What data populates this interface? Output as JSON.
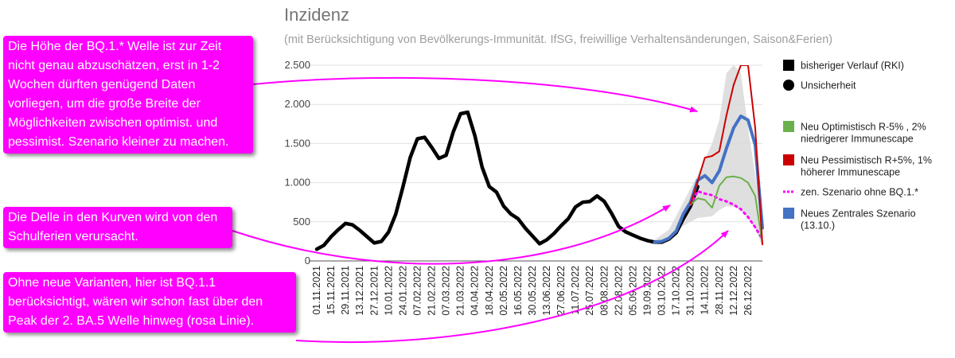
{
  "header": {
    "title": "Inzidenz",
    "subtitle": "(mit Berücksichtigung von Bevölkerungs-Immunität. IfSG, freiwillige Verhaltensänderungen, Saison&Ferien)"
  },
  "callouts": [
    {
      "text": "Die Höhe der BQ.1.* Welle ist zur Zeit nicht genau abzuschätzen, erst in 1-2 Wochen dürften genügend Daten vorliegen, um die große Breite der Möglichkeiten zwischen optimist. und pessimist. Szenario kleiner zu machen."
    },
    {
      "text": "Die Delle in den Kurven wird von den Schulferien verursacht."
    },
    {
      "text": "Ohne neue Varianten, hier ist BQ.1.1 berücksichtigt, wären wir schon fast über den Peak der 2. BA.5 Welle hinweg (rosa Linie)."
    }
  ],
  "colors": {
    "callout": "#ff00ff",
    "history": "#000000",
    "optimistic": "#6ab04c",
    "pessimistic": "#cc0000",
    "central": "#4472c4",
    "no_bq1": "#ff00ff",
    "band": "#d9d9d9"
  },
  "chart_data": {
    "type": "line",
    "ylim": [
      0,
      2500
    ],
    "y_ticks": [
      0,
      500,
      1000,
      1500,
      2000,
      2500
    ],
    "y_tick_labels": [
      "0",
      "500",
      "1.000",
      "1.500",
      "2.000",
      "2.500"
    ],
    "x_tick_labels": [
      "01.11.2021",
      "15.11.2021",
      "29.11.2021",
      "13.12.2021",
      "27.12.2021",
      "10.01.2022",
      "24.01.2022",
      "07.02.2022",
      "21.02.2022",
      "07.03.2022",
      "21.03.2022",
      "04.04.2022",
      "18.04.2022",
      "02.05.2022",
      "16.05.2022",
      "30.05.2022",
      "13.06.2022",
      "27.06.2022",
      "11.07.2022",
      "25.07.2022",
      "08.08.2022",
      "22.08.2022",
      "05.09.2022",
      "19.09.2022",
      "03.10.2022",
      "17.10.2022",
      "31.10.2022",
      "14.11.2022",
      "28.11.2022",
      "12.12.2022",
      "26.12.2022"
    ],
    "x_range": [
      0,
      62
    ],
    "legend": [
      {
        "label": "bisheriger Verlauf (RKI)",
        "marker": "square",
        "color": "#000000"
      },
      {
        "label": "Unsicherheit",
        "marker": "circle",
        "color": "#000000"
      },
      {
        "label": "Neu Optimistisch R-5% , 2% niedrigerer Immunescape",
        "marker": "square",
        "color": "#6ab04c"
      },
      {
        "label": "Neu Pessimistisch R+5%, 1% höherer Immunescape",
        "marker": "square",
        "color": "#cc0000"
      },
      {
        "label": "zen. Szenario ohne BQ.1.*",
        "marker": "dots",
        "color": "#ff00ff"
      },
      {
        "label": "Neues Zentrales Szenario (13.10.)",
        "marker": "square",
        "color": "#4472c4"
      }
    ],
    "uncertainty_band": {
      "x": [
        47,
        49,
        51,
        53,
        55,
        56,
        57,
        58,
        59,
        60,
        61,
        62
      ],
      "lower": [
        230,
        300,
        450,
        550,
        570,
        650,
        700,
        690,
        650,
        550,
        400,
        200
      ],
      "upper": [
        270,
        400,
        750,
        1100,
        1500,
        1800,
        2400,
        2500,
        2400,
        1700,
        1100,
        450
      ]
    },
    "series": [
      {
        "key": "history",
        "x": [
          0,
          1,
          2,
          3,
          4,
          5,
          6,
          7,
          8,
          9,
          10,
          11,
          12,
          13,
          14,
          15,
          16,
          17,
          18,
          19,
          20,
          21,
          22,
          23,
          24,
          25,
          26,
          27,
          28,
          29,
          30,
          31,
          32,
          33,
          34,
          35,
          36,
          37,
          38,
          39,
          40,
          41,
          42,
          43,
          44,
          45,
          46,
          47,
          48,
          49,
          50,
          51,
          52,
          53
        ],
        "values": [
          150,
          200,
          310,
          400,
          480,
          460,
          390,
          310,
          230,
          250,
          370,
          600,
          950,
          1320,
          1560,
          1580,
          1450,
          1310,
          1350,
          1650,
          1880,
          1900,
          1600,
          1200,
          950,
          880,
          700,
          600,
          540,
          420,
          320,
          220,
          270,
          350,
          450,
          540,
          690,
          750,
          760,
          830,
          760,
          610,
          440,
          370,
          330,
          290,
          260,
          240,
          240,
          280,
          360,
          540,
          700,
          950
        ]
      },
      {
        "key": "central",
        "x": [
          47,
          48,
          49,
          50,
          51,
          52,
          53,
          54,
          55,
          56,
          57,
          58,
          59,
          60,
          61,
          62
        ],
        "values": [
          240,
          250,
          290,
          380,
          600,
          750,
          1030,
          1090,
          1000,
          1150,
          1440,
          1700,
          1850,
          1800,
          1480,
          420
        ]
      },
      {
        "key": "no_bq1",
        "x": [
          52,
          53,
          54,
          55,
          56,
          57,
          58,
          59,
          60,
          61,
          62
        ],
        "values": [
          720,
          890,
          860,
          840,
          790,
          760,
          720,
          660,
          560,
          430,
          280
        ]
      },
      {
        "key": "optimistic",
        "x": [
          52,
          53,
          54,
          55,
          56,
          57,
          58,
          59,
          60,
          61,
          62
        ],
        "values": [
          720,
          800,
          780,
          680,
          960,
          1070,
          1080,
          1060,
          1000,
          830,
          220
        ]
      },
      {
        "key": "pessimistic",
        "x": [
          52,
          53,
          54,
          55,
          56,
          57,
          58,
          59,
          60,
          61,
          62
        ],
        "values": [
          730,
          1020,
          1320,
          1340,
          1400,
          1860,
          2250,
          2500,
          2500,
          1700,
          210
        ]
      }
    ]
  }
}
